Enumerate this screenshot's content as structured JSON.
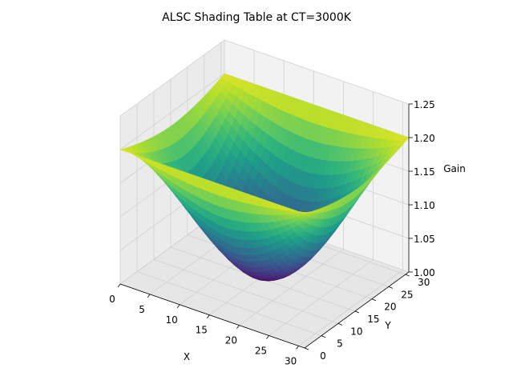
{
  "chart_data": {
    "type": "surface",
    "title": "ALSC Shading Table at CT=3000K",
    "xlabel": "X",
    "ylabel": "Y",
    "zlabel": "Gain",
    "xlim": [
      0,
      31
    ],
    "ylim": [
      0,
      31
    ],
    "zlim": [
      1.0,
      1.25
    ],
    "x_ticks": [
      "0",
      "5",
      "10",
      "15",
      "20",
      "25",
      "30"
    ],
    "y_ticks": [
      "0",
      "5",
      "10",
      "15",
      "20",
      "25",
      "30"
    ],
    "z_ticks": [
      "1.00",
      "1.05",
      "1.10",
      "1.15",
      "1.20",
      "1.25"
    ],
    "colormap": "viridis",
    "grid": true,
    "grid_points": 32,
    "surface_model": {
      "center_value": 1.0,
      "edge_value_x": 1.18,
      "edge_value_y": 1.2,
      "corner_values": {
        "x0_y0": 1.2,
        "x31_y0": 1.2,
        "x0_y31": 1.2,
        "x31_y31": 1.2
      }
    },
    "colors": {
      "pane_back": "#f2f2f2",
      "pane_side": "#ebebeb",
      "pane_floor": "#e6e6e6",
      "grid": "#d0d0d0"
    }
  }
}
